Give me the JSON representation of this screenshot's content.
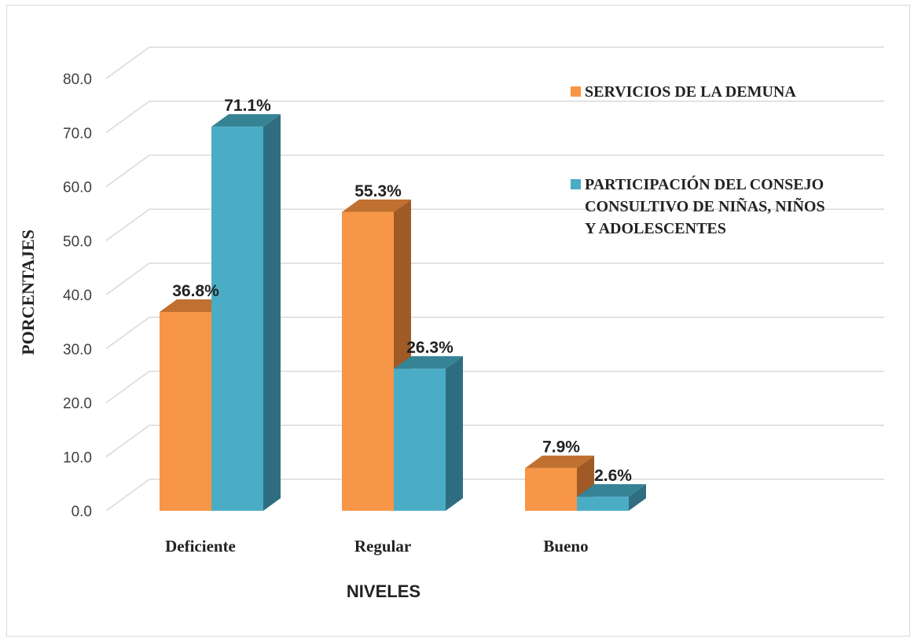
{
  "chart_data": {
    "type": "bar",
    "three_d": true,
    "categories": [
      "Deficiente",
      "Regular",
      "Bueno"
    ],
    "series": [
      {
        "name": "SERVICIOS DE LA DEMUNA",
        "color": "#F79646",
        "side_color": "#A05A25",
        "top_color": "#C0702F",
        "values": [
          36.8,
          55.3,
          7.9
        ],
        "labels": [
          "36.8%",
          "55.3%",
          "7.9%"
        ]
      },
      {
        "name": "PARTICIPACIÓN DEL CONSEJO CONSULTIVO DE NIÑAS, NIÑOS Y ADOLESCENTES",
        "name_lines": [
          "PARTICIPACIÓN DEL CONSEJO",
          "CONSULTIVO DE NIÑAS, NIÑOS",
          "Y ADOLESCENTES"
        ],
        "color": "#4BACC6",
        "side_color": "#2F6E80",
        "top_color": "#378396",
        "values": [
          71.1,
          26.3,
          2.6
        ],
        "labels": [
          "71.1%",
          "26.3%",
          "2.6%"
        ]
      }
    ],
    "title": "",
    "xlabel": "NIVELES",
    "ylabel": "PORCENTAJES",
    "ylim": [
      0,
      80
    ],
    "yticks": [
      "0.0",
      "10.0",
      "20.0",
      "30.0",
      "40.0",
      "50.0",
      "60.0",
      "70.0",
      "80.0"
    ],
    "grid": true,
    "legend_position": "top-right"
  }
}
